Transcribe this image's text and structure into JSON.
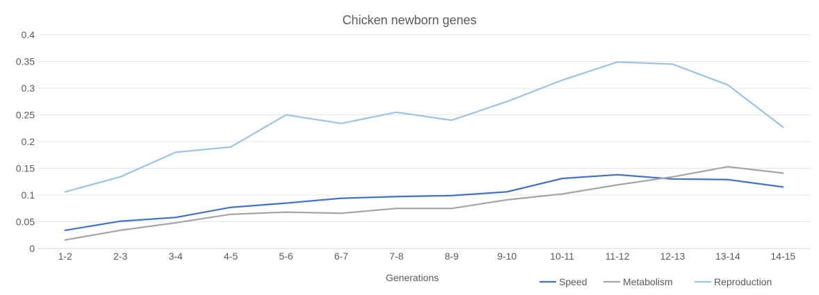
{
  "chart_data": {
    "type": "line",
    "title": "Chicken newborn genes",
    "xlabel": "Generations",
    "ylabel": "",
    "categories": [
      "1-2",
      "2-3",
      "3-4",
      "4-5",
      "5-6",
      "6-7",
      "7-8",
      "8-9",
      "9-10",
      "10-11",
      "11-12",
      "12-13",
      "13-14",
      "14-15"
    ],
    "ylim": [
      0,
      0.4
    ],
    "yticks": [
      "0",
      "0.05",
      "0.1",
      "0.15",
      "0.2",
      "0.25",
      "0.3",
      "0.35",
      "0.4"
    ],
    "ytick_values": [
      0,
      0.05,
      0.1,
      0.15,
      0.2,
      0.25,
      0.3,
      0.35,
      0.4
    ],
    "grid": true,
    "legend_position": "bottom-right",
    "series": [
      {
        "name": "Speed",
        "color": "#4472c4",
        "values": [
          0.034,
          0.051,
          0.058,
          0.077,
          0.085,
          0.094,
          0.097,
          0.099,
          0.106,
          0.131,
          0.138,
          0.13,
          0.129,
          0.115
        ]
      },
      {
        "name": "Metabolism",
        "color": "#a5a5a5",
        "values": [
          0.016,
          0.034,
          0.048,
          0.064,
          0.068,
          0.066,
          0.075,
          0.075,
          0.091,
          0.102,
          0.119,
          0.134,
          0.153,
          0.141
        ]
      },
      {
        "name": "Reproduction",
        "color": "#9dc3e6",
        "values": [
          0.106,
          0.134,
          0.18,
          0.19,
          0.25,
          0.234,
          0.255,
          0.24,
          0.275,
          0.315,
          0.349,
          0.345,
          0.306,
          0.227
        ]
      }
    ]
  }
}
